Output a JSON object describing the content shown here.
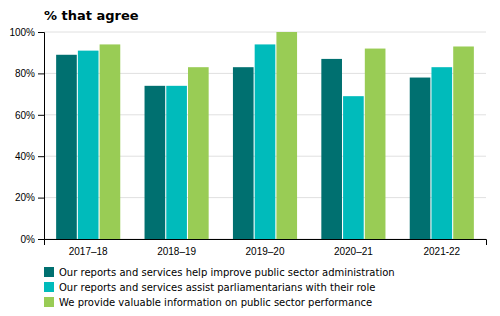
{
  "chart_data": {
    "type": "bar",
    "title": "% that agree",
    "categories": [
      "2017–18",
      "2018–19",
      "2019–20",
      "2020–21",
      "2021-22"
    ],
    "series": [
      {
        "name": "Our reports and services help improve public sector administration",
        "color": "#007070",
        "values": [
          89,
          74,
          83,
          87,
          78
        ]
      },
      {
        "name": "Our reports and services assist parliamentarians with their role",
        "color": "#00BBBB",
        "values": [
          91,
          74,
          94,
          69,
          83
        ]
      },
      {
        "name": "We provide valuable information on public sector performance",
        "color": "#99CC55",
        "values": [
          94,
          83,
          100,
          92,
          93
        ]
      }
    ],
    "ylim": [
      0,
      100
    ],
    "yticks": [
      {
        "value": 0,
        "label": "0%"
      },
      {
        "value": 20,
        "label": "20%"
      },
      {
        "value": 40,
        "label": "40%"
      },
      {
        "value": 60,
        "label": "60%"
      },
      {
        "value": 80,
        "label": "80%"
      },
      {
        "value": 100,
        "label": "100%"
      }
    ],
    "grid": true,
    "legend": "bottom"
  }
}
